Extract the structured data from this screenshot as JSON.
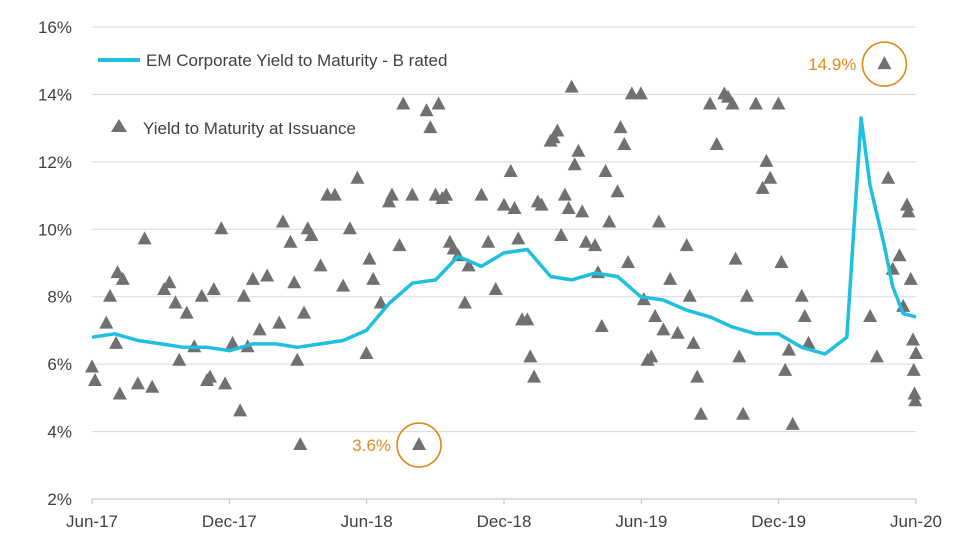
{
  "chart_data": {
    "type": "line",
    "title": "",
    "xlabel": "",
    "ylabel": "",
    "x_tick_labels": [
      "Jun-17",
      "Dec-17",
      "Jun-18",
      "Dec-18",
      "Jun-19",
      "Dec-19",
      "Jun-20"
    ],
    "y_tick_labels": [
      "2%",
      "4%",
      "6%",
      "8%",
      "10%",
      "12%",
      "14%",
      "16%"
    ],
    "xlim": [
      "2017-06-01",
      "2020-06-01"
    ],
    "ylim": [
      2,
      16
    ],
    "grid": "horizontal",
    "legend_position": "top-left",
    "colors": {
      "line": "#1fbfe0",
      "markers": "#707070",
      "annotation": "#e08a1e",
      "grid": "#d9d9d9"
    },
    "series": [
      {
        "name": "EM Corporate Yield to Maturity - B rated",
        "type": "line",
        "points": [
          [
            "2017-06-01",
            6.8
          ],
          [
            "2017-07-01",
            6.9
          ],
          [
            "2017-08-01",
            6.7
          ],
          [
            "2017-09-01",
            6.6
          ],
          [
            "2017-10-01",
            6.5
          ],
          [
            "2017-11-01",
            6.5
          ],
          [
            "2017-12-01",
            6.4
          ],
          [
            "2018-01-01",
            6.6
          ],
          [
            "2018-02-01",
            6.6
          ],
          [
            "2018-03-01",
            6.5
          ],
          [
            "2018-04-01",
            6.6
          ],
          [
            "2018-05-01",
            6.7
          ],
          [
            "2018-06-01",
            7.0
          ],
          [
            "2018-07-01",
            7.8
          ],
          [
            "2018-08-01",
            8.4
          ],
          [
            "2018-09-01",
            8.5
          ],
          [
            "2018-10-01",
            9.2
          ],
          [
            "2018-11-01",
            8.9
          ],
          [
            "2018-12-01",
            9.3
          ],
          [
            "2019-01-01",
            9.4
          ],
          [
            "2019-02-01",
            8.6
          ],
          [
            "2019-03-01",
            8.5
          ],
          [
            "2019-04-01",
            8.7
          ],
          [
            "2019-05-01",
            8.6
          ],
          [
            "2019-06-01",
            8.0
          ],
          [
            "2019-07-01",
            7.9
          ],
          [
            "2019-08-01",
            7.6
          ],
          [
            "2019-09-01",
            7.4
          ],
          [
            "2019-10-01",
            7.1
          ],
          [
            "2019-11-01",
            6.9
          ],
          [
            "2019-12-01",
            6.9
          ],
          [
            "2020-01-01",
            6.5
          ],
          [
            "2020-02-01",
            6.3
          ],
          [
            "2020-03-01",
            6.8
          ],
          [
            "2020-03-20",
            13.3
          ],
          [
            "2020-04-01",
            11.3
          ],
          [
            "2020-04-20",
            9.5
          ],
          [
            "2020-05-01",
            8.3
          ],
          [
            "2020-05-15",
            7.5
          ],
          [
            "2020-06-01",
            7.4
          ]
        ]
      },
      {
        "name": "Yield to Maturity at Issuance",
        "type": "scatter",
        "points": [
          [
            "2017-06-01",
            5.9
          ],
          [
            "2017-06-05",
            5.5
          ],
          [
            "2017-06-20",
            7.2
          ],
          [
            "2017-06-25",
            8.0
          ],
          [
            "2017-07-03",
            6.6
          ],
          [
            "2017-07-05",
            8.7
          ],
          [
            "2017-07-08",
            5.1
          ],
          [
            "2017-07-12",
            8.5
          ],
          [
            "2017-08-01",
            5.4
          ],
          [
            "2017-08-10",
            9.7
          ],
          [
            "2017-08-20",
            5.3
          ],
          [
            "2017-09-05",
            8.2
          ],
          [
            "2017-09-12",
            8.4
          ],
          [
            "2017-09-20",
            7.8
          ],
          [
            "2017-09-25",
            6.1
          ],
          [
            "2017-10-05",
            7.5
          ],
          [
            "2017-10-15",
            6.5
          ],
          [
            "2017-10-25",
            8.0
          ],
          [
            "2017-11-01",
            5.5
          ],
          [
            "2017-11-05",
            5.6
          ],
          [
            "2017-11-10",
            8.2
          ],
          [
            "2017-11-20",
            10.0
          ],
          [
            "2017-11-25",
            5.4
          ],
          [
            "2017-12-05",
            6.6
          ],
          [
            "2017-12-15",
            4.6
          ],
          [
            "2017-12-20",
            8.0
          ],
          [
            "2017-12-25",
            6.5
          ],
          [
            "2018-01-01",
            8.5
          ],
          [
            "2018-01-10",
            7.0
          ],
          [
            "2018-01-20",
            8.6
          ],
          [
            "2018-02-05",
            7.2
          ],
          [
            "2018-02-10",
            10.2
          ],
          [
            "2018-02-20",
            9.6
          ],
          [
            "2018-02-25",
            8.4
          ],
          [
            "2018-03-01",
            6.1
          ],
          [
            "2018-03-05",
            3.6
          ],
          [
            "2018-03-10",
            7.5
          ],
          [
            "2018-03-15",
            10.0
          ],
          [
            "2018-03-20",
            9.8
          ],
          [
            "2018-04-01",
            8.9
          ],
          [
            "2018-04-10",
            11.0
          ],
          [
            "2018-04-20",
            11.0
          ],
          [
            "2018-05-01",
            8.3
          ],
          [
            "2018-05-10",
            10.0
          ],
          [
            "2018-05-20",
            11.5
          ],
          [
            "2018-06-01",
            6.3
          ],
          [
            "2018-06-05",
            9.1
          ],
          [
            "2018-06-10",
            8.5
          ],
          [
            "2018-06-20",
            7.8
          ],
          [
            "2018-07-01",
            10.8
          ],
          [
            "2018-07-05",
            11.0
          ],
          [
            "2018-07-15",
            9.5
          ],
          [
            "2018-07-20",
            13.7
          ],
          [
            "2018-08-01",
            11.0
          ],
          [
            "2018-08-10",
            3.6
          ],
          [
            "2018-08-20",
            13.5
          ],
          [
            "2018-08-25",
            13.0
          ],
          [
            "2018-09-01",
            11.0
          ],
          [
            "2018-09-05",
            13.7
          ],
          [
            "2018-09-10",
            10.9
          ],
          [
            "2018-09-15",
            11.0
          ],
          [
            "2018-09-20",
            9.6
          ],
          [
            "2018-09-25",
            9.4
          ],
          [
            "2018-10-01",
            9.2
          ],
          [
            "2018-10-10",
            7.8
          ],
          [
            "2018-10-15",
            8.9
          ],
          [
            "2018-11-01",
            11.0
          ],
          [
            "2018-11-10",
            9.6
          ],
          [
            "2018-11-20",
            8.2
          ],
          [
            "2018-12-01",
            10.7
          ],
          [
            "2018-12-10",
            11.7
          ],
          [
            "2018-12-15",
            10.6
          ],
          [
            "2018-12-20",
            9.7
          ],
          [
            "2018-12-25",
            7.3
          ],
          [
            "2019-01-01",
            7.3
          ],
          [
            "2019-01-05",
            6.2
          ],
          [
            "2019-01-10",
            5.6
          ],
          [
            "2019-01-15",
            10.8
          ],
          [
            "2019-01-20",
            10.7
          ],
          [
            "2019-02-01",
            12.6
          ],
          [
            "2019-02-05",
            12.7
          ],
          [
            "2019-02-10",
            12.9
          ],
          [
            "2019-02-15",
            9.8
          ],
          [
            "2019-02-20",
            11.0
          ],
          [
            "2019-02-25",
            10.6
          ],
          [
            "2019-03-01",
            14.2
          ],
          [
            "2019-03-05",
            11.9
          ],
          [
            "2019-03-10",
            12.3
          ],
          [
            "2019-03-15",
            10.5
          ],
          [
            "2019-03-20",
            9.6
          ],
          [
            "2019-04-01",
            9.5
          ],
          [
            "2019-04-05",
            8.7
          ],
          [
            "2019-04-10",
            7.1
          ],
          [
            "2019-04-15",
            11.7
          ],
          [
            "2019-04-20",
            10.2
          ],
          [
            "2019-05-01",
            11.1
          ],
          [
            "2019-05-05",
            13.0
          ],
          [
            "2019-05-10",
            12.5
          ],
          [
            "2019-05-15",
            9.0
          ],
          [
            "2019-05-20",
            14.0
          ],
          [
            "2019-06-01",
            14.0
          ],
          [
            "2019-06-05",
            7.9
          ],
          [
            "2019-06-10",
            6.1
          ],
          [
            "2019-06-15",
            6.2
          ],
          [
            "2019-06-20",
            7.4
          ],
          [
            "2019-06-25",
            10.2
          ],
          [
            "2019-07-01",
            7.0
          ],
          [
            "2019-07-10",
            8.5
          ],
          [
            "2019-07-20",
            6.9
          ],
          [
            "2019-08-01",
            9.5
          ],
          [
            "2019-08-05",
            8.0
          ],
          [
            "2019-08-10",
            6.6
          ],
          [
            "2019-08-15",
            5.6
          ],
          [
            "2019-08-20",
            4.5
          ],
          [
            "2019-09-01",
            13.7
          ],
          [
            "2019-09-10",
            12.5
          ],
          [
            "2019-09-20",
            14.0
          ],
          [
            "2019-09-25",
            13.9
          ],
          [
            "2019-10-01",
            13.7
          ],
          [
            "2019-10-05",
            9.1
          ],
          [
            "2019-10-10",
            6.2
          ],
          [
            "2019-10-15",
            4.5
          ],
          [
            "2019-10-20",
            8.0
          ],
          [
            "2019-11-01",
            13.7
          ],
          [
            "2019-11-10",
            11.2
          ],
          [
            "2019-11-15",
            12.0
          ],
          [
            "2019-11-20",
            11.5
          ],
          [
            "2019-12-01",
            13.7
          ],
          [
            "2019-12-05",
            9.0
          ],
          [
            "2019-12-10",
            5.8
          ],
          [
            "2019-12-15",
            6.4
          ],
          [
            "2019-12-20",
            4.2
          ],
          [
            "2020-01-01",
            8.0
          ],
          [
            "2020-01-05",
            7.4
          ],
          [
            "2020-01-10",
            6.6
          ],
          [
            "2020-04-01",
            7.4
          ],
          [
            "2020-04-10",
            6.2
          ],
          [
            "2020-04-20",
            14.9
          ],
          [
            "2020-04-25",
            11.5
          ],
          [
            "2020-05-01",
            8.8
          ],
          [
            "2020-05-10",
            9.2
          ],
          [
            "2020-05-15",
            7.7
          ],
          [
            "2020-05-20",
            10.7
          ],
          [
            "2020-05-22",
            10.5
          ],
          [
            "2020-05-25",
            8.5
          ],
          [
            "2020-05-28",
            6.7
          ],
          [
            "2020-05-29",
            5.8
          ],
          [
            "2020-05-30",
            5.1
          ],
          [
            "2020-05-31",
            4.9
          ],
          [
            "2020-06-01",
            6.3
          ]
        ]
      }
    ],
    "annotations": [
      {
        "label": "3.6%",
        "date": "2018-08-10",
        "value": 3.6,
        "label_side": "left"
      },
      {
        "label": "14.9%",
        "date": "2020-04-20",
        "value": 14.9,
        "label_side": "left"
      }
    ]
  }
}
